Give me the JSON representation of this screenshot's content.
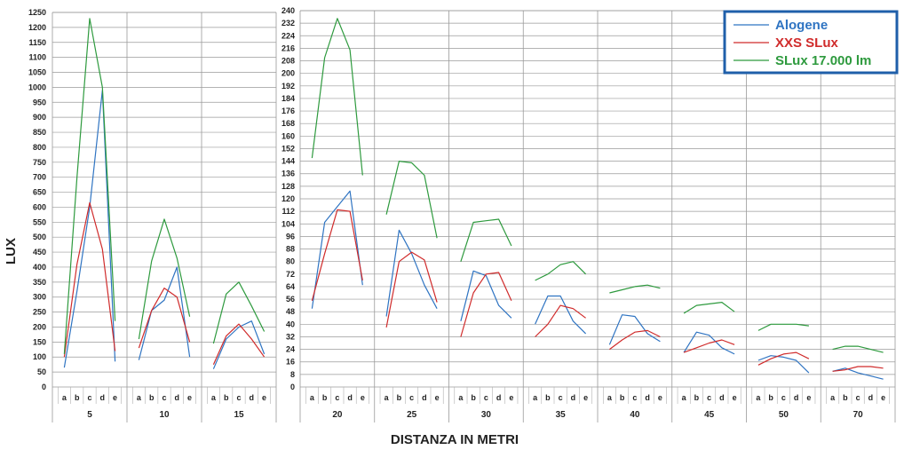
{
  "chart_data": {
    "type": "line",
    "ylabel": "LUX",
    "xlabel": "DISTANZA IN METRI",
    "sub_categories": [
      "a",
      "b",
      "c",
      "d",
      "e"
    ],
    "legend": [
      {
        "name": "Alogene",
        "color": "#2f74c2"
      },
      {
        "name": "XXS SLux",
        "color": "#d02b2b"
      },
      {
        "name": "SLux 17.000 lm",
        "color": "#2e9a3e"
      }
    ],
    "panels": [
      {
        "ylim": [
          0,
          1250
        ],
        "yticks": [
          0,
          50,
          100,
          150,
          200,
          250,
          300,
          350,
          400,
          450,
          500,
          550,
          600,
          650,
          700,
          750,
          800,
          850,
          900,
          950,
          1000,
          1050,
          1100,
          1150,
          1200,
          1250
        ],
        "groups": [
          {
            "distance": "5",
            "series": {
              "Alogene": [
                65,
                320,
                600,
                990,
                85
              ],
              "XXS SLux": [
                100,
                410,
                615,
                460,
                120
              ],
              "SLux 17.000 lm": [
                110,
                700,
                1230,
                1000,
                220
              ]
            }
          },
          {
            "distance": "10",
            "series": {
              "Alogene": [
                90,
                255,
                290,
                400,
                100
              ],
              "XXS SLux": [
                130,
                255,
                330,
                300,
                150
              ],
              "SLux 17.000 lm": [
                160,
                420,
                560,
                430,
                235
              ]
            }
          },
          {
            "distance": "15",
            "series": {
              "Alogene": [
                60,
                160,
                200,
                220,
                110
              ],
              "XXS SLux": [
                75,
                170,
                210,
                160,
                100
              ],
              "SLux 17.000 lm": [
                145,
                310,
                350,
                270,
                185
              ]
            }
          }
        ]
      },
      {
        "ylim": [
          0,
          240
        ],
        "yticks": [
          0,
          8,
          16,
          24,
          32,
          40,
          48,
          56,
          64,
          72,
          80,
          88,
          96,
          104,
          112,
          120,
          128,
          136,
          144,
          152,
          160,
          168,
          176,
          184,
          192,
          200,
          208,
          216,
          224,
          232,
          240
        ],
        "groups": [
          {
            "distance": "20",
            "series": {
              "Alogene": [
                50,
                105,
                115,
                125,
                65
              ],
              "XXS SLux": [
                55,
                85,
                113,
                112,
                68
              ],
              "SLux 17.000 lm": [
                146,
                210,
                235,
                215,
                135
              ]
            }
          },
          {
            "distance": "25",
            "series": {
              "Alogene": [
                45,
                100,
                85,
                65,
                50
              ],
              "XXS SLux": [
                38,
                80,
                86,
                81,
                54
              ],
              "SLux 17.000 lm": [
                110,
                144,
                143,
                135,
                95
              ]
            }
          },
          {
            "distance": "30",
            "series": {
              "Alogene": [
                42,
                74,
                71,
                52,
                44
              ],
              "XXS SLux": [
                32,
                60,
                72,
                73,
                55
              ],
              "SLux 17.000 lm": [
                80,
                105,
                106,
                107,
                90
              ]
            }
          },
          {
            "distance": "35",
            "series": {
              "Alogene": [
                40,
                58,
                58,
                42,
                34
              ],
              "XXS SLux": [
                32,
                40,
                52,
                50,
                44
              ],
              "SLux 17.000 lm": [
                68,
                72,
                78,
                80,
                72
              ]
            }
          },
          {
            "distance": "40",
            "series": {
              "Alogene": [
                27,
                46,
                45,
                34,
                29
              ],
              "XXS SLux": [
                24,
                30,
                35,
                36,
                32
              ],
              "SLux 17.000 lm": [
                60,
                62,
                64,
                65,
                63
              ]
            }
          },
          {
            "distance": "45",
            "series": {
              "Alogene": [
                22,
                35,
                33,
                25,
                21
              ],
              "XXS SLux": [
                22,
                25,
                28,
                30,
                27
              ],
              "SLux 17.000 lm": [
                47,
                52,
                53,
                54,
                48
              ]
            }
          },
          {
            "distance": "50",
            "series": {
              "Alogene": [
                17,
                20,
                19,
                17,
                9
              ],
              "XXS SLux": [
                14,
                18,
                21,
                22,
                18
              ],
              "SLux 17.000 lm": [
                36,
                40,
                40,
                40,
                39
              ]
            }
          },
          {
            "distance": "70",
            "series": {
              "Alogene": [
                10,
                12,
                9,
                7,
                5
              ],
              "XXS SLux": [
                10,
                11,
                13,
                13,
                12
              ],
              "SLux 17.000 lm": [
                24,
                26,
                26,
                24,
                22
              ]
            }
          }
        ]
      }
    ]
  }
}
